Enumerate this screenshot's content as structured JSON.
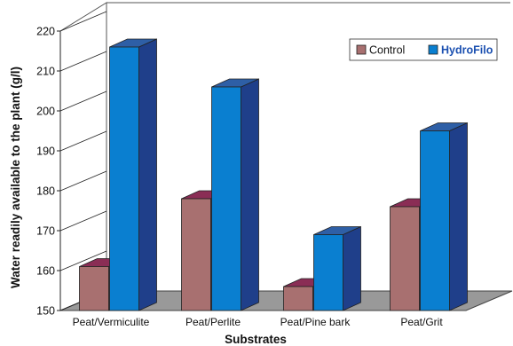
{
  "chart_data": {
    "type": "bar",
    "title": "",
    "xlabel": "Substrates",
    "ylabel": "Water readily available to the plant  (g/l)",
    "ylim": [
      150,
      220
    ],
    "yticks": [
      150,
      160,
      170,
      180,
      190,
      200,
      210,
      220
    ],
    "categories": [
      "Peat/Vermiculite",
      "Peat/Perlite",
      "Peat/Pine bark",
      "Peat/Grit"
    ],
    "series": [
      {
        "name": "Control",
        "values": [
          161,
          178,
          156,
          176
        ],
        "color": "#a87070",
        "side_color": "#6e3a3a",
        "top_color": "#8a2d55"
      },
      {
        "name": "HydroFilo",
        "values": [
          216,
          206,
          169,
          195
        ],
        "color": "#0a7fd0",
        "side_color": "#1f3f8a",
        "top_color": "#2e5fa6"
      }
    ],
    "legend": {
      "position": "top-right",
      "labels": [
        "Control",
        "HydroFilo"
      ]
    },
    "floor_color": "#999999",
    "projection": "3d"
  }
}
